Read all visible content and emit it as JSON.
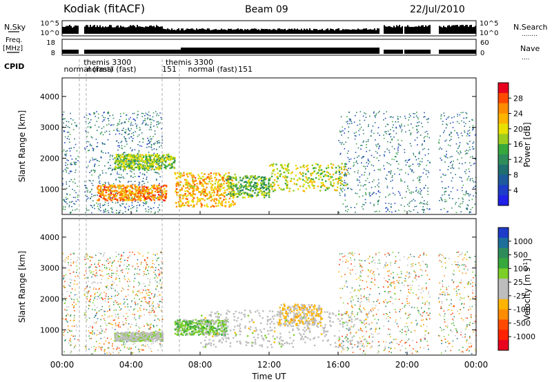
{
  "header": {
    "station": "Kodiak (fitACF)",
    "beam": "Beam 09",
    "date": "22/Jul/2010"
  },
  "side_labels": {
    "nsky": "N.Sky",
    "nsearch": "N.Search",
    "nsearch_dots": "........",
    "freq_line1": "Freq.",
    "freq_line2": "[MHz]",
    "nave": "Nave",
    "nave_dots": "....",
    "cpid": "CPID"
  },
  "noise_panel": {
    "left_ticks": [
      "10^5",
      "10^0"
    ],
    "right_ticks": [
      "10^5",
      "10^0"
    ]
  },
  "freq_panel": {
    "left_ticks": [
      "18",
      "8"
    ],
    "right_ticks": [
      "60",
      "0"
    ]
  },
  "cpid_labels": [
    {
      "text": "normal (fast)",
      "hour": 0.1,
      "row": 2
    },
    {
      "text": "themis 3300",
      "hour": 1.25,
      "row": 1
    },
    {
      "text": "normal (fast)",
      "hour": 1.45,
      "row": 2
    },
    {
      "text": "151",
      "hour": 5.8,
      "row": 2
    },
    {
      "text": "themis 3300",
      "hour": 6.0,
      "row": 1
    },
    {
      "text": "normal (fast)",
      "hour": 7.3,
      "row": 2
    },
    {
      "text": "151",
      "hour": 10.2,
      "row": 2
    }
  ],
  "power_colorbar": {
    "label": "Power [dB]",
    "ticks": [
      "28",
      "24",
      "20",
      "16",
      "12",
      "8",
      "4"
    ],
    "colors": [
      "#e8001e",
      "#ff4a00",
      "#ff8c00",
      "#ffb400",
      "#e8e000",
      "#9ccc1e",
      "#37a83c",
      "#2f8c5a",
      "#1f6e70",
      "#1e5a9c",
      "#1e3cc8",
      "#2020e8"
    ]
  },
  "velocity_colorbar": {
    "label": "Velocity [m s",
    "label_sup": "-1",
    "label_end": "]",
    "ticks": [
      "1000",
      "500",
      "100",
      "25",
      "-25",
      "-100",
      "-500",
      "-1000"
    ],
    "colors": [
      "#1e3cc8",
      "#1e6e9c",
      "#2f8c5a",
      "#37a83c",
      "#7ccf28",
      "#bdbdbd",
      "#bdbdbd",
      "#ffb400",
      "#ff8c00",
      "#ff4a00",
      "#ff2200",
      "#e8001e"
    ]
  },
  "chart_data": {
    "type": "heatmap",
    "title": "Kodiak (fitACF)  Beam 09  22/Jul/2010",
    "xlabel": "Time UT",
    "ylabel": "Slant Range [km]",
    "x_ticks": [
      "00:00",
      "04:00",
      "08:00",
      "12:00",
      "16:00",
      "20:00",
      "00:00"
    ],
    "y_ticks": [
      "1000",
      "2000",
      "3000",
      "4000"
    ],
    "xlim": [
      0,
      24
    ],
    "ylim": [
      180,
      4600
    ],
    "grid": false,
    "data_gaps_hours": [
      [
        0.9,
        1.25
      ],
      [
        18.4,
        18.6
      ],
      [
        19.7,
        19.8
      ],
      [
        21.3,
        21.8
      ]
    ],
    "mode_change_hours": [
      1.0,
      1.4,
      5.8,
      6.8
    ],
    "panels": [
      {
        "name": "Power",
        "units": "dB",
        "range": [
          0,
          30
        ],
        "features": [
          {
            "t0": 0.0,
            "t1": 5.8,
            "r0": 200,
            "r1": 3500,
            "level": 6,
            "kind": "scatter"
          },
          {
            "t0": 2.0,
            "t1": 6.0,
            "r0": 600,
            "r1": 1100,
            "level": 24,
            "kind": "band"
          },
          {
            "t0": 3.0,
            "t1": 6.5,
            "r0": 1600,
            "r1": 2100,
            "level": 16,
            "kind": "band"
          },
          {
            "t0": 6.5,
            "t1": 10.0,
            "r0": 400,
            "r1": 1500,
            "level": 22,
            "kind": "band"
          },
          {
            "t0": 9.5,
            "t1": 12.0,
            "r0": 700,
            "r1": 1400,
            "level": 14,
            "kind": "patch"
          },
          {
            "t0": 12.0,
            "t1": 16.5,
            "r0": 900,
            "r1": 1800,
            "level": 18,
            "kind": "patch"
          },
          {
            "t0": 16.0,
            "t1": 24.0,
            "r0": 200,
            "r1": 3500,
            "level": 6,
            "kind": "scatter"
          }
        ]
      },
      {
        "name": "Velocity",
        "units": "m s-1",
        "range": [
          -1000,
          1000
        ],
        "features": [
          {
            "t0": 0.0,
            "t1": 5.8,
            "r0": 200,
            "r1": 3500,
            "level": 0,
            "kind": "scatter"
          },
          {
            "t0": 3.0,
            "t1": 5.8,
            "r0": 600,
            "r1": 900,
            "level": 80,
            "kind": "band"
          },
          {
            "t0": 6.5,
            "t1": 9.5,
            "r0": 800,
            "r1": 1300,
            "level": 300,
            "kind": "band"
          },
          {
            "t0": 12.5,
            "t1": 15.0,
            "r0": 1100,
            "r1": 1800,
            "level": -200,
            "kind": "patch"
          },
          {
            "t0": 8.0,
            "t1": 18.0,
            "r0": 400,
            "r1": 1600,
            "level": 0,
            "kind": "band"
          },
          {
            "t0": 16.0,
            "t1": 24.0,
            "r0": 200,
            "r1": 3500,
            "level": 0,
            "kind": "scatter"
          }
        ]
      }
    ]
  }
}
